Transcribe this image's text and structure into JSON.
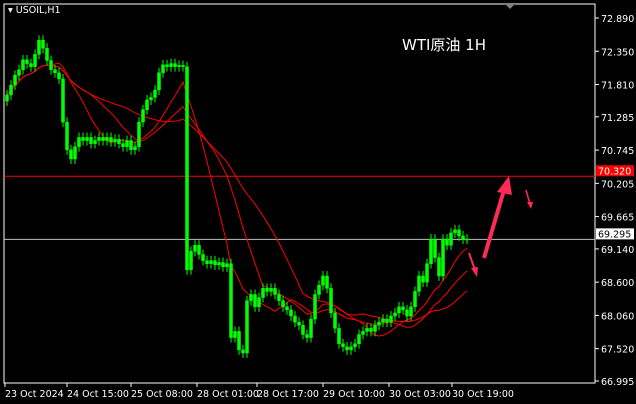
{
  "chart_data": {
    "type": "candlestick",
    "symbol_label": "USOIL,H1",
    "annotation": "WTI原油 1H",
    "y_ticks": [
      "72.890",
      "72.350",
      "71.810",
      "71.285",
      "70.745",
      "70.205",
      "69.665",
      "69.140",
      "68.600",
      "68.060",
      "67.520",
      "66.995"
    ],
    "ylim": [
      66.995,
      72.89
    ],
    "x_ticks": [
      "23 Oct 2024",
      "24 Oct 15:00",
      "25 Oct 08:00",
      "28 Oct 01:00",
      "28 Oct 17:00",
      "29 Oct 10:00",
      "30 Oct 03:00",
      "30 Oct 19:00"
    ],
    "closes": [
      71.64,
      71.8,
      71.96,
      72.05,
      72.21,
      72.15,
      72.1,
      72.3,
      72.53,
      72.4,
      72.2,
      72.05,
      72.0,
      71.9,
      71.2,
      70.75,
      70.6,
      70.8,
      70.95,
      70.9,
      70.95,
      70.85,
      70.9,
      70.95,
      70.9,
      70.95,
      70.88,
      70.92,
      70.85,
      70.8,
      70.9,
      70.75,
      70.8,
      71.2,
      71.4,
      71.56,
      71.6,
      71.72,
      72.0,
      72.13,
      72.1,
      72.15,
      72.1,
      72.12,
      72.1,
      68.8,
      69.1,
      69.2,
      69.05,
      68.95,
      68.9,
      68.95,
      68.88,
      68.92,
      68.85,
      68.9,
      67.7,
      67.8,
      67.5,
      67.45,
      68.3,
      68.4,
      68.2,
      68.35,
      68.5,
      68.45,
      68.5,
      68.4,
      68.3,
      68.2,
      68.15,
      68.05,
      67.95,
      67.9,
      67.75,
      67.7,
      68.0,
      68.4,
      68.55,
      68.7,
      68.5,
      68.1,
      67.85,
      67.6,
      67.55,
      67.5,
      67.55,
      67.6,
      67.75,
      67.8,
      67.85,
      67.8,
      67.9,
      67.95,
      68.0,
      67.95,
      68.05,
      68.1,
      68.2,
      68.15,
      68.05,
      68.2,
      68.45,
      68.7,
      68.6,
      68.9,
      69.3,
      69.0,
      68.7,
      69.3,
      69.2,
      69.4,
      69.45,
      69.35,
      69.3,
      69.295
    ],
    "horizontal_lines": [
      {
        "price": 70.32,
        "label": "70.320",
        "color": "#ff0000"
      },
      {
        "price": 69.295,
        "label": "69.295",
        "color": "#c0c0c0"
      }
    ],
    "colors": {
      "candle": "#00ff00",
      "moving_average": "#ff0000",
      "arrow": "#ff2a55",
      "background": "#000000"
    }
  }
}
